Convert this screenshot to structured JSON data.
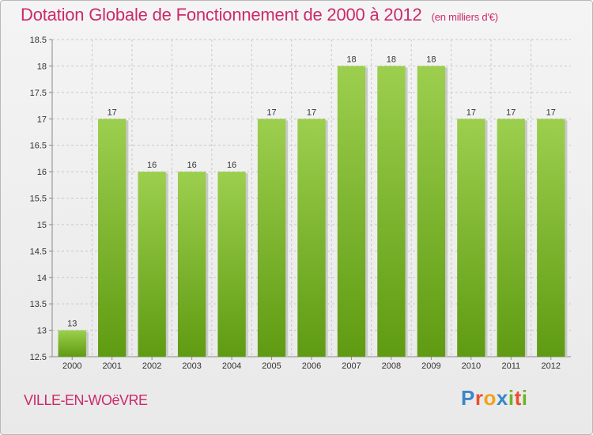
{
  "header": {
    "title": "Dotation Globale de Fonctionnement de 2000 à 2012",
    "subtitle": "(en milliers d'€)"
  },
  "footer": {
    "commune": "VILLE-EN-WOëVRE"
  },
  "logo": {
    "letters": [
      "P",
      "r",
      "o",
      "x",
      "i",
      "t",
      "i"
    ],
    "colors": [
      "#3a86c8",
      "#e94f2c",
      "#f2a31b",
      "#3a86c8",
      "#6bb42a",
      "#e94f2c",
      "#6bb42a"
    ]
  },
  "chart_data": {
    "type": "bar",
    "categories": [
      "2000",
      "2001",
      "2002",
      "2003",
      "2004",
      "2005",
      "2006",
      "2007",
      "2008",
      "2009",
      "2010",
      "2011",
      "2012"
    ],
    "values": [
      13,
      17,
      16,
      16,
      16,
      17,
      17,
      18,
      18,
      18,
      17,
      17,
      17
    ],
    "data_labels": [
      "13",
      "17",
      "16",
      "16",
      "16",
      "17",
      "17",
      "18",
      "18",
      "18",
      "17",
      "17",
      "17"
    ],
    "ylim": [
      12.5,
      18.5
    ],
    "yticks": [
      12.5,
      13,
      13.5,
      14,
      14.5,
      15,
      15.5,
      16,
      16.5,
      17,
      17.5,
      18,
      18.5
    ],
    "ytick_labels": [
      "12.5",
      "13",
      "13.5",
      "14",
      "14.5",
      "15",
      "15.5",
      "16",
      "16.5",
      "17",
      "17.5",
      "18",
      "18.5"
    ],
    "grid": true,
    "colors": {
      "bar_top": "#9ccf4e",
      "bar_bottom": "#5f9b12",
      "grid": "#c8c8c8"
    }
  }
}
